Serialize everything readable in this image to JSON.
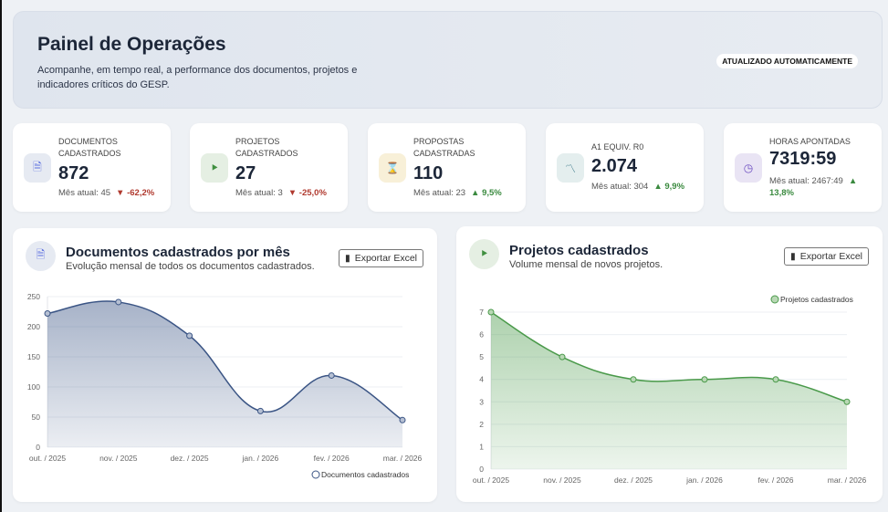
{
  "header": {
    "title": "Painel de Operações",
    "subtitle": "Acompanhe, em tempo real, a performance dos documentos, projetos e indicadores críticos do GESP.",
    "badge": "ATUALIZADO AUTOMATICAMENTE"
  },
  "kpis": [
    {
      "label": "Documentos cadastrados",
      "value": "872",
      "month": "Mês atual: 45",
      "delta": "▼ -62,2%",
      "trend": "down",
      "icon": "document-icon",
      "color": "#5b6fe0",
      "bg": "#e6eaf2"
    },
    {
      "label": "Projetos cadastrados",
      "value": "27",
      "month": "Mês atual: 3",
      "delta": "▼ -25,0%",
      "trend": "down",
      "icon": "project-tree-icon",
      "color": "#3f8f3f",
      "bg": "#e5efe3"
    },
    {
      "label": "Propostas cadastradas",
      "value": "110",
      "month": "Mês atual: 23",
      "delta": "▲ 9,5%",
      "trend": "up",
      "icon": "hourglass-icon",
      "color": "#d9b93a",
      "bg": "#f8f0d8"
    },
    {
      "label": "A1 equiv. R0",
      "value": "2.074",
      "month": "Mês atual: 304",
      "delta": "▲ 9,9%",
      "trend": "up",
      "icon": "line-chart-icon",
      "color": "#3d7a8a",
      "bg": "#e4eeee"
    },
    {
      "label": "Horas apontadas",
      "value": "7319:59",
      "month": "Mês atual: 2467:49",
      "delta": "▲ 13,8%",
      "trend": "up",
      "icon": "clock-icon",
      "color": "#6a4bc0",
      "bg": "#e9e4f4"
    }
  ],
  "export_label": "Exportar Excel",
  "chart_data": [
    {
      "type": "area",
      "title": "Documentos cadastrados por mês",
      "subtitle": "Evolução mensal de todos os documentos cadastrados.",
      "categories": [
        "out. / 2025",
        "nov. / 2025",
        "dez. / 2025",
        "jan. / 2026",
        "fev. / 2026",
        "mar. / 2026"
      ],
      "series": [
        {
          "name": "Documentos cadastrados",
          "values": [
            222,
            241,
            185,
            60,
            119,
            45
          ]
        }
      ],
      "ylim": [
        0,
        250
      ],
      "yticks": [
        0,
        50,
        100,
        150,
        200,
        250
      ],
      "color": "#3b5585",
      "legend": "bottom-right",
      "grid": true
    },
    {
      "type": "area",
      "title": "Projetos cadastrados",
      "subtitle": "Volume mensal de novos projetos.",
      "categories": [
        "out. / 2025",
        "nov. / 2025",
        "dez. / 2025",
        "jan. / 2026",
        "fev. / 2026",
        "mar. / 2026"
      ],
      "series": [
        {
          "name": "Projetos cadastrados",
          "values": [
            7,
            5,
            4,
            4,
            4,
            3
          ]
        }
      ],
      "ylim": [
        0,
        7
      ],
      "yticks": [
        0,
        1,
        2,
        3,
        4,
        5,
        6,
        7
      ],
      "color": "#4a9a4a",
      "legend": "top-right",
      "grid": true
    }
  ]
}
